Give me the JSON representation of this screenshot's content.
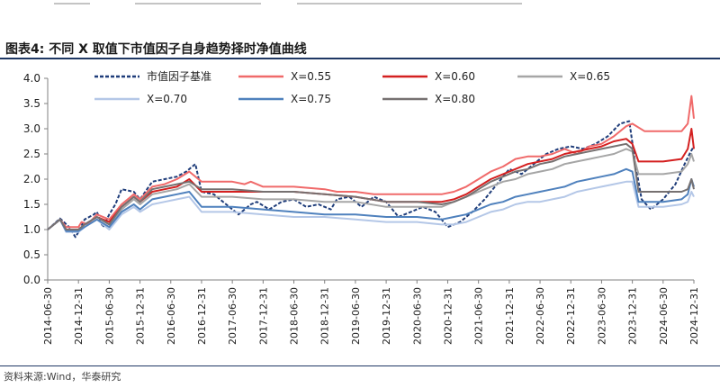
{
  "figure": {
    "title": "图表4:  不同 X 取值下市值因子自身趋势择时净值曲线",
    "source": "资料来源:Wind，华泰研究"
  },
  "chart_data": {
    "type": "line",
    "title": "不同 X 取值下市值因子自身趋势择时净值曲线",
    "xlabel": "",
    "ylabel": "",
    "ylim": [
      0.0,
      4.0
    ],
    "yticks": [
      "0.0",
      "0.5",
      "1.0",
      "1.5",
      "2.0",
      "2.5",
      "3.0",
      "3.5",
      "4.0"
    ],
    "x_range": [
      2014.5,
      2025.0
    ],
    "xticks": [
      "2014-06-30",
      "2014-12-31",
      "2015-06-30",
      "2015-12-31",
      "2016-06-30",
      "2016-12-31",
      "2017-06-30",
      "2017-12-31",
      "2018-06-30",
      "2018-12-31",
      "2019-06-30",
      "2019-12-31",
      "2020-06-30",
      "2020-12-31",
      "2021-06-30",
      "2021-12-31",
      "2022-06-30",
      "2022-12-31",
      "2023-06-30",
      "2023-12-31",
      "2024-06-30",
      "2024-12-31"
    ],
    "legend_position": "top",
    "grid": false,
    "series": [
      {
        "name": "市值因子基准",
        "color": "#1f3d7a",
        "dashed": true,
        "x": [
          2014.5,
          2014.7,
          2014.85,
          2014.95,
          2015.0,
          2015.1,
          2015.25,
          2015.3,
          2015.4,
          2015.5,
          2015.6,
          2015.7,
          2015.9,
          2016.0,
          2016.2,
          2016.4,
          2016.6,
          2016.75,
          2016.9,
          2017.0,
          2017.2,
          2017.4,
          2017.6,
          2017.8,
          2017.9,
          2018.1,
          2018.3,
          2018.5,
          2018.7,
          2018.9,
          2019.1,
          2019.2,
          2019.4,
          2019.6,
          2019.8,
          2020.0,
          2020.2,
          2020.4,
          2020.6,
          2020.8,
          2021.0,
          2021.2,
          2021.4,
          2021.6,
          2021.8,
          2022.0,
          2022.2,
          2022.4,
          2022.6,
          2022.8,
          2023.0,
          2023.2,
          2023.4,
          2023.6,
          2023.8,
          2023.95,
          2024.05,
          2024.15,
          2024.3,
          2024.5,
          2024.7,
          2024.85,
          2024.95,
          2025.0
        ],
        "values": [
          1.0,
          1.22,
          1.05,
          0.85,
          0.95,
          1.2,
          1.3,
          1.35,
          1.05,
          1.3,
          1.5,
          1.8,
          1.75,
          1.6,
          1.95,
          2.0,
          2.05,
          2.15,
          2.3,
          1.75,
          1.7,
          1.5,
          1.3,
          1.5,
          1.55,
          1.4,
          1.55,
          1.6,
          1.45,
          1.5,
          1.4,
          1.6,
          1.65,
          1.45,
          1.65,
          1.55,
          1.25,
          1.35,
          1.45,
          1.35,
          1.05,
          1.15,
          1.35,
          1.6,
          1.9,
          2.2,
          2.1,
          2.3,
          2.5,
          2.6,
          2.65,
          2.6,
          2.7,
          2.85,
          3.1,
          3.15,
          2.3,
          1.6,
          1.4,
          1.6,
          1.9,
          2.3,
          2.55,
          2.65
        ]
      },
      {
        "name": "X=0.55",
        "color": "#f06a6a",
        "dashed": false,
        "x": [
          2014.5,
          2014.7,
          2014.8,
          2015.0,
          2015.05,
          2015.15,
          2015.3,
          2015.5,
          2015.7,
          2015.9,
          2016.0,
          2016.2,
          2016.4,
          2016.6,
          2016.8,
          2017.0,
          2017.5,
          2017.7,
          2017.8,
          2018.0,
          2018.5,
          2019.0,
          2019.2,
          2019.5,
          2019.8,
          2020.0,
          2020.3,
          2020.5,
          2020.9,
          2021.1,
          2021.3,
          2021.5,
          2021.7,
          2021.9,
          2022.1,
          2022.3,
          2022.5,
          2022.7,
          2022.9,
          2023.1,
          2023.3,
          2023.5,
          2023.7,
          2023.9,
          2024.0,
          2024.2,
          2024.5,
          2024.8,
          2024.9,
          2024.96,
          2025.0
        ],
        "values": [
          1.0,
          1.2,
          1.05,
          1.05,
          1.15,
          1.1,
          1.3,
          1.2,
          1.5,
          1.7,
          1.6,
          1.85,
          1.9,
          2.0,
          2.15,
          1.95,
          1.95,
          1.9,
          1.95,
          1.85,
          1.85,
          1.8,
          1.75,
          1.75,
          1.7,
          1.7,
          1.7,
          1.7,
          1.7,
          1.75,
          1.85,
          2.0,
          2.15,
          2.25,
          2.4,
          2.45,
          2.45,
          2.5,
          2.6,
          2.5,
          2.65,
          2.7,
          2.85,
          3.05,
          3.1,
          2.95,
          2.95,
          2.95,
          3.1,
          3.65,
          3.2
        ]
      },
      {
        "name": "X=0.60",
        "color": "#d42020",
        "dashed": false,
        "x": [
          2014.5,
          2014.7,
          2014.8,
          2015.0,
          2015.1,
          2015.3,
          2015.5,
          2015.7,
          2015.9,
          2016.0,
          2016.2,
          2016.4,
          2016.6,
          2016.8,
          2017.0,
          2017.5,
          2018.0,
          2018.5,
          2019.0,
          2019.5,
          2020.0,
          2020.5,
          2020.9,
          2021.1,
          2021.3,
          2021.5,
          2021.7,
          2021.9,
          2022.1,
          2022.3,
          2022.5,
          2022.7,
          2022.9,
          2023.1,
          2023.3,
          2023.5,
          2023.7,
          2023.9,
          2024.0,
          2024.1,
          2024.5,
          2024.8,
          2024.9,
          2024.96,
          2025.0
        ],
        "values": [
          1.0,
          1.2,
          1.0,
          1.0,
          1.1,
          1.25,
          1.15,
          1.45,
          1.65,
          1.55,
          1.75,
          1.8,
          1.85,
          2.0,
          1.75,
          1.75,
          1.75,
          1.75,
          1.7,
          1.65,
          1.55,
          1.55,
          1.55,
          1.6,
          1.7,
          1.85,
          2.0,
          2.1,
          2.2,
          2.3,
          2.35,
          2.4,
          2.5,
          2.55,
          2.6,
          2.65,
          2.75,
          2.8,
          2.7,
          2.35,
          2.35,
          2.4,
          2.6,
          3.0,
          2.6
        ]
      },
      {
        "name": "X=0.65",
        "color": "#a6a6a6",
        "dashed": false,
        "x": [
          2014.5,
          2014.7,
          2014.8,
          2015.0,
          2015.1,
          2015.3,
          2015.5,
          2015.7,
          2015.9,
          2016.0,
          2016.2,
          2016.4,
          2016.6,
          2016.8,
          2017.0,
          2017.5,
          2018.0,
          2018.5,
          2019.0,
          2019.5,
          2020.0,
          2020.5,
          2020.9,
          2021.1,
          2021.3,
          2021.5,
          2021.7,
          2021.9,
          2022.1,
          2022.3,
          2022.5,
          2022.7,
          2022.9,
          2023.1,
          2023.3,
          2023.5,
          2023.7,
          2023.9,
          2024.0,
          2024.1,
          2024.5,
          2024.8,
          2024.9,
          2024.96,
          2025.0
        ],
        "values": [
          1.0,
          1.2,
          1.0,
          1.0,
          1.1,
          1.25,
          1.1,
          1.4,
          1.6,
          1.5,
          1.7,
          1.75,
          1.8,
          1.9,
          1.65,
          1.65,
          1.6,
          1.6,
          1.55,
          1.55,
          1.45,
          1.45,
          1.45,
          1.55,
          1.65,
          1.75,
          1.85,
          1.95,
          2.0,
          2.1,
          2.15,
          2.2,
          2.3,
          2.35,
          2.4,
          2.45,
          2.5,
          2.6,
          2.55,
          2.1,
          2.1,
          2.15,
          2.3,
          2.5,
          2.35
        ]
      },
      {
        "name": "X=0.70",
        "color": "#b4c7e7",
        "dashed": false,
        "x": [
          2014.5,
          2014.7,
          2014.8,
          2015.0,
          2015.1,
          2015.3,
          2015.5,
          2015.7,
          2015.9,
          2016.0,
          2016.2,
          2016.4,
          2016.6,
          2016.8,
          2017.0,
          2017.5,
          2018.0,
          2018.5,
          2019.0,
          2019.5,
          2020.0,
          2020.5,
          2020.9,
          2021.1,
          2021.3,
          2021.5,
          2021.7,
          2021.9,
          2022.1,
          2022.3,
          2022.5,
          2022.7,
          2022.9,
          2023.1,
          2023.3,
          2023.5,
          2023.7,
          2023.9,
          2024.0,
          2024.1,
          2024.5,
          2024.8,
          2024.9,
          2024.96,
          2025.0
        ],
        "values": [
          1.0,
          1.2,
          0.95,
          0.95,
          1.05,
          1.2,
          1.0,
          1.3,
          1.45,
          1.35,
          1.5,
          1.55,
          1.6,
          1.65,
          1.35,
          1.35,
          1.3,
          1.25,
          1.25,
          1.2,
          1.15,
          1.15,
          1.1,
          1.1,
          1.15,
          1.25,
          1.35,
          1.4,
          1.5,
          1.55,
          1.55,
          1.6,
          1.65,
          1.75,
          1.8,
          1.85,
          1.9,
          1.95,
          1.95,
          1.45,
          1.45,
          1.5,
          1.55,
          1.75,
          1.65
        ]
      },
      {
        "name": "X=0.75",
        "color": "#4f81bd",
        "dashed": false,
        "x": [
          2014.5,
          2014.7,
          2014.8,
          2015.0,
          2015.1,
          2015.3,
          2015.5,
          2015.7,
          2015.9,
          2016.0,
          2016.2,
          2016.4,
          2016.6,
          2016.8,
          2017.0,
          2017.5,
          2018.0,
          2018.5,
          2019.0,
          2019.5,
          2020.0,
          2020.5,
          2020.9,
          2021.1,
          2021.3,
          2021.5,
          2021.7,
          2021.9,
          2022.1,
          2022.3,
          2022.5,
          2022.7,
          2022.9,
          2023.1,
          2023.3,
          2023.5,
          2023.7,
          2023.9,
          2024.0,
          2024.1,
          2024.5,
          2024.8,
          2024.9,
          2024.96,
          2025.0
        ],
        "values": [
          1.0,
          1.2,
          0.97,
          0.97,
          1.05,
          1.2,
          1.05,
          1.35,
          1.5,
          1.4,
          1.6,
          1.65,
          1.7,
          1.75,
          1.45,
          1.45,
          1.4,
          1.35,
          1.3,
          1.3,
          1.25,
          1.25,
          1.2,
          1.25,
          1.3,
          1.4,
          1.5,
          1.55,
          1.65,
          1.7,
          1.75,
          1.8,
          1.85,
          1.95,
          2.0,
          2.05,
          2.1,
          2.2,
          2.15,
          1.55,
          1.55,
          1.6,
          1.7,
          2.0,
          1.85
        ]
      },
      {
        "name": "X=0.80",
        "color": "#767171",
        "dashed": false,
        "x": [
          2014.5,
          2014.7,
          2014.8,
          2015.0,
          2015.1,
          2015.3,
          2015.5,
          2015.7,
          2015.9,
          2016.0,
          2016.2,
          2016.4,
          2016.6,
          2016.8,
          2017.0,
          2017.5,
          2018.0,
          2018.5,
          2019.0,
          2019.5,
          2020.0,
          2020.5,
          2020.9,
          2021.1,
          2021.3,
          2021.5,
          2021.7,
          2021.9,
          2022.1,
          2022.3,
          2022.5,
          2022.7,
          2022.9,
          2023.1,
          2023.3,
          2023.5,
          2023.7,
          2023.9,
          2024.0,
          2024.1,
          2024.5,
          2024.8,
          2024.9,
          2024.96,
          2025.0
        ],
        "values": [
          1.0,
          1.2,
          1.0,
          1.0,
          1.1,
          1.25,
          1.1,
          1.45,
          1.65,
          1.55,
          1.8,
          1.85,
          1.9,
          1.95,
          1.8,
          1.8,
          1.75,
          1.75,
          1.7,
          1.65,
          1.55,
          1.55,
          1.5,
          1.55,
          1.65,
          1.8,
          1.95,
          2.05,
          2.15,
          2.2,
          2.3,
          2.35,
          2.45,
          2.5,
          2.55,
          2.6,
          2.65,
          2.7,
          2.6,
          1.75,
          1.75,
          1.75,
          1.8,
          2.0,
          1.8
        ]
      }
    ]
  }
}
